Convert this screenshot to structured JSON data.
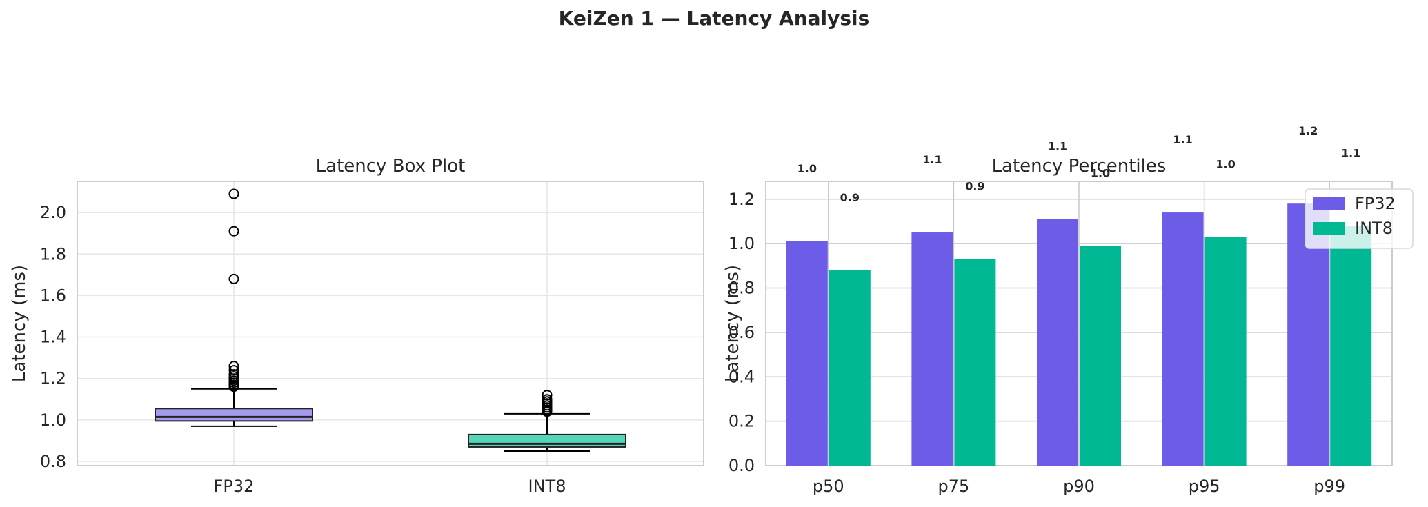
{
  "figure": {
    "suptitle": "KeiZen 1 — Latency Analysis"
  },
  "colors": {
    "fp32": "#6C5CE7",
    "int8": "#00B894",
    "fp32_box": "#A29BF0",
    "int8_box": "#55D6B8",
    "grid": "#C8C8C8",
    "frame": "#CCCCCC",
    "text": "#262626"
  },
  "chart_data": [
    {
      "type": "box",
      "title": "Latency Box Plot",
      "ylabel": "Latency (ms)",
      "xlabel": "",
      "categories": [
        "FP32",
        "INT8"
      ],
      "ylim": [
        0.78,
        2.15
      ],
      "yticks": [
        0.8,
        1.0,
        1.2,
        1.4,
        1.6,
        1.8,
        2.0
      ],
      "grid": true,
      "series": [
        {
          "category": "FP32",
          "whisker_low": 0.97,
          "q1": 0.995,
          "median": 1.015,
          "q3": 1.055,
          "whisker_high": 1.15,
          "outliers": [
            2.09,
            1.91,
            1.68,
            1.26,
            1.24,
            1.22,
            1.21,
            1.2,
            1.19,
            1.18,
            1.17,
            1.165,
            1.16
          ]
        },
        {
          "category": "INT8",
          "whisker_low": 0.85,
          "q1": 0.87,
          "median": 0.885,
          "q3": 0.93,
          "whisker_high": 1.03,
          "outliers": [
            1.12,
            1.1,
            1.09,
            1.08,
            1.07,
            1.06,
            1.05,
            1.045,
            1.04
          ]
        }
      ]
    },
    {
      "type": "bar",
      "title": "Latency Percentiles",
      "ylabel": "Latency (ms)",
      "xlabel": "",
      "categories": [
        "p50",
        "p75",
        "p90",
        "p95",
        "p99"
      ],
      "ylim": [
        0,
        1.28
      ],
      "yticks": [
        0.0,
        0.2,
        0.4,
        0.6,
        0.8,
        1.0,
        1.2
      ],
      "grid": true,
      "legend": "upper-right",
      "series": [
        {
          "name": "FP32",
          "values": [
            1.01,
            1.05,
            1.11,
            1.14,
            1.18
          ],
          "labels": [
            "1.0",
            "1.1",
            "1.1",
            "1.1",
            "1.2"
          ]
        },
        {
          "name": "INT8",
          "values": [
            0.88,
            0.93,
            0.99,
            1.03,
            1.08
          ],
          "labels": [
            "0.9",
            "0.9",
            "1.0",
            "1.0",
            "1.1"
          ]
        }
      ]
    }
  ]
}
